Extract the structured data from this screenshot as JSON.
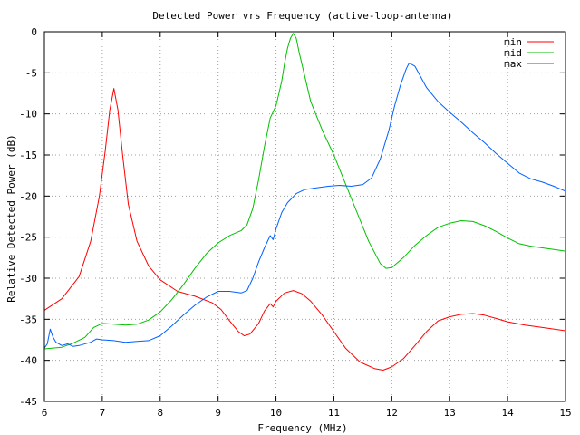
{
  "chart_data": {
    "type": "line",
    "title": "Detected Power vrs Frequency (active-loop-antenna)",
    "xlabel": "Frequency (MHz)",
    "ylabel": "Relative Detected Power (dB)",
    "xlim": [
      6,
      15
    ],
    "ylim": [
      -45,
      0
    ],
    "x_ticks": [
      6,
      7,
      8,
      9,
      10,
      11,
      12,
      13,
      14,
      15
    ],
    "y_ticks": [
      0,
      -5,
      -10,
      -15,
      -20,
      -25,
      -30,
      -35,
      -40,
      -45
    ],
    "grid": true,
    "legend_position": "top-right",
    "series": [
      {
        "name": "min",
        "color": "#ff0000",
        "points": [
          [
            6.0,
            -33.9
          ],
          [
            6.3,
            -32.5
          ],
          [
            6.6,
            -29.8
          ],
          [
            6.8,
            -25.5
          ],
          [
            6.95,
            -20.0
          ],
          [
            7.05,
            -14.5
          ],
          [
            7.13,
            -9.5
          ],
          [
            7.2,
            -6.9
          ],
          [
            7.27,
            -9.5
          ],
          [
            7.35,
            -15.0
          ],
          [
            7.45,
            -21.0
          ],
          [
            7.6,
            -25.5
          ],
          [
            7.8,
            -28.5
          ],
          [
            8.0,
            -30.2
          ],
          [
            8.3,
            -31.6
          ],
          [
            8.6,
            -32.2
          ],
          [
            8.9,
            -33.0
          ],
          [
            9.05,
            -33.8
          ],
          [
            9.2,
            -35.2
          ],
          [
            9.35,
            -36.5
          ],
          [
            9.45,
            -37.0
          ],
          [
            9.55,
            -36.8
          ],
          [
            9.7,
            -35.5
          ],
          [
            9.8,
            -34.0
          ],
          [
            9.9,
            -33.1
          ],
          [
            9.95,
            -33.5
          ],
          [
            10.0,
            -32.8
          ],
          [
            10.15,
            -31.8
          ],
          [
            10.3,
            -31.5
          ],
          [
            10.45,
            -31.9
          ],
          [
            10.6,
            -32.8
          ],
          [
            10.8,
            -34.5
          ],
          [
            11.0,
            -36.5
          ],
          [
            11.2,
            -38.5
          ],
          [
            11.45,
            -40.2
          ],
          [
            11.7,
            -41.0
          ],
          [
            11.85,
            -41.2
          ],
          [
            12.0,
            -40.8
          ],
          [
            12.2,
            -39.8
          ],
          [
            12.4,
            -38.2
          ],
          [
            12.6,
            -36.5
          ],
          [
            12.8,
            -35.2
          ],
          [
            13.0,
            -34.7
          ],
          [
            13.2,
            -34.4
          ],
          [
            13.4,
            -34.3
          ],
          [
            13.6,
            -34.5
          ],
          [
            13.8,
            -34.9
          ],
          [
            14.0,
            -35.3
          ],
          [
            14.3,
            -35.7
          ],
          [
            14.6,
            -36.0
          ],
          [
            15.0,
            -36.4
          ]
        ]
      },
      {
        "name": "mid",
        "color": "#00c000",
        "points": [
          [
            6.0,
            -38.6
          ],
          [
            6.3,
            -38.4
          ],
          [
            6.5,
            -37.9
          ],
          [
            6.7,
            -37.2
          ],
          [
            6.85,
            -36.0
          ],
          [
            7.0,
            -35.5
          ],
          [
            7.2,
            -35.6
          ],
          [
            7.4,
            -35.7
          ],
          [
            7.6,
            -35.6
          ],
          [
            7.8,
            -35.1
          ],
          [
            8.0,
            -34.1
          ],
          [
            8.2,
            -32.6
          ],
          [
            8.4,
            -30.8
          ],
          [
            8.6,
            -28.8
          ],
          [
            8.8,
            -27.0
          ],
          [
            9.0,
            -25.7
          ],
          [
            9.2,
            -24.8
          ],
          [
            9.4,
            -24.2
          ],
          [
            9.5,
            -23.5
          ],
          [
            9.6,
            -21.5
          ],
          [
            9.7,
            -18.0
          ],
          [
            9.8,
            -14.0
          ],
          [
            9.9,
            -10.5
          ],
          [
            10.0,
            -9.0
          ],
          [
            10.05,
            -7.5
          ],
          [
            10.1,
            -6.0
          ],
          [
            10.15,
            -3.8
          ],
          [
            10.2,
            -2.0
          ],
          [
            10.25,
            -0.8
          ],
          [
            10.3,
            -0.2
          ],
          [
            10.35,
            -0.8
          ],
          [
            10.4,
            -2.5
          ],
          [
            10.5,
            -5.5
          ],
          [
            10.6,
            -8.5
          ],
          [
            10.8,
            -12.0
          ],
          [
            11.0,
            -15.0
          ],
          [
            11.2,
            -18.5
          ],
          [
            11.4,
            -22.0
          ],
          [
            11.6,
            -25.5
          ],
          [
            11.8,
            -28.2
          ],
          [
            11.9,
            -28.8
          ],
          [
            12.0,
            -28.7
          ],
          [
            12.2,
            -27.5
          ],
          [
            12.4,
            -26.0
          ],
          [
            12.6,
            -24.8
          ],
          [
            12.8,
            -23.8
          ],
          [
            13.0,
            -23.3
          ],
          [
            13.2,
            -23.0
          ],
          [
            13.4,
            -23.1
          ],
          [
            13.6,
            -23.6
          ],
          [
            13.8,
            -24.3
          ],
          [
            14.0,
            -25.1
          ],
          [
            14.2,
            -25.8
          ],
          [
            14.4,
            -26.1
          ],
          [
            14.6,
            -26.3
          ],
          [
            14.8,
            -26.5
          ],
          [
            15.0,
            -26.7
          ]
        ]
      },
      {
        "name": "max",
        "color": "#0060ff",
        "points": [
          [
            6.0,
            -38.5
          ],
          [
            6.05,
            -38.0
          ],
          [
            6.1,
            -36.2
          ],
          [
            6.15,
            -37.2
          ],
          [
            6.2,
            -37.8
          ],
          [
            6.3,
            -38.2
          ],
          [
            6.4,
            -38.0
          ],
          [
            6.5,
            -38.3
          ],
          [
            6.6,
            -38.2
          ],
          [
            6.8,
            -37.8
          ],
          [
            6.9,
            -37.4
          ],
          [
            7.0,
            -37.5
          ],
          [
            7.2,
            -37.6
          ],
          [
            7.4,
            -37.8
          ],
          [
            7.6,
            -37.7
          ],
          [
            7.8,
            -37.6
          ],
          [
            8.0,
            -37.0
          ],
          [
            8.2,
            -35.8
          ],
          [
            8.4,
            -34.5
          ],
          [
            8.6,
            -33.3
          ],
          [
            8.8,
            -32.3
          ],
          [
            9.0,
            -31.6
          ],
          [
            9.2,
            -31.6
          ],
          [
            9.4,
            -31.8
          ],
          [
            9.5,
            -31.5
          ],
          [
            9.6,
            -30.0
          ],
          [
            9.7,
            -28.0
          ],
          [
            9.8,
            -26.3
          ],
          [
            9.9,
            -24.8
          ],
          [
            9.95,
            -25.3
          ],
          [
            10.0,
            -24.0
          ],
          [
            10.1,
            -22.0
          ],
          [
            10.2,
            -20.8
          ],
          [
            10.35,
            -19.7
          ],
          [
            10.5,
            -19.2
          ],
          [
            10.7,
            -19.0
          ],
          [
            10.9,
            -18.8
          ],
          [
            11.1,
            -18.7
          ],
          [
            11.3,
            -18.8
          ],
          [
            11.5,
            -18.6
          ],
          [
            11.65,
            -17.8
          ],
          [
            11.8,
            -15.5
          ],
          [
            11.95,
            -12.0
          ],
          [
            12.05,
            -9.0
          ],
          [
            12.15,
            -6.5
          ],
          [
            12.25,
            -4.5
          ],
          [
            12.3,
            -3.8
          ],
          [
            12.4,
            -4.2
          ],
          [
            12.5,
            -5.5
          ],
          [
            12.6,
            -6.8
          ],
          [
            12.8,
            -8.5
          ],
          [
            13.0,
            -9.8
          ],
          [
            13.2,
            -11.0
          ],
          [
            13.4,
            -12.3
          ],
          [
            13.6,
            -13.5
          ],
          [
            13.8,
            -14.8
          ],
          [
            14.0,
            -16.0
          ],
          [
            14.2,
            -17.2
          ],
          [
            14.4,
            -17.9
          ],
          [
            14.6,
            -18.3
          ],
          [
            14.8,
            -18.8
          ],
          [
            15.0,
            -19.4
          ]
        ]
      }
    ]
  }
}
